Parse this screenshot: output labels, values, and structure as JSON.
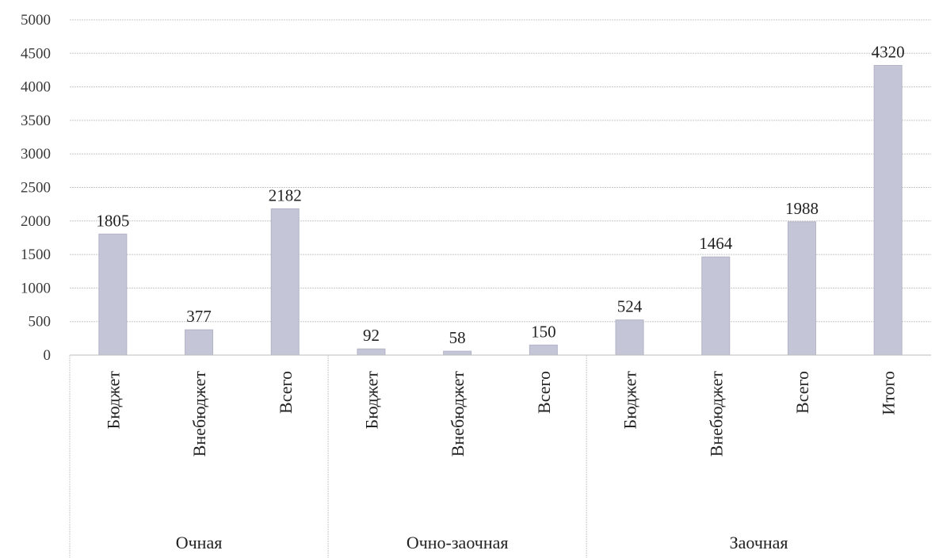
{
  "chart_data": {
    "type": "bar",
    "title": "",
    "xlabel": "",
    "ylabel": "",
    "ylim": [
      0,
      5000
    ],
    "yticks": [
      0,
      500,
      1000,
      1500,
      2000,
      2500,
      3000,
      3500,
      4000,
      4500,
      5000
    ],
    "grid": true,
    "legend": "none",
    "bar_color": "#c4c6d8",
    "groups": [
      {
        "name": "Очная",
        "categories": [
          "Бюджет",
          "Внебюджет",
          "Всего"
        ],
        "values": [
          1805,
          377,
          2182
        ]
      },
      {
        "name": "Очно-заочная",
        "categories": [
          "Бюджет",
          "Внебюджет",
          "Всего"
        ],
        "values": [
          92,
          58,
          150
        ]
      },
      {
        "name": "Заочная",
        "categories": [
          "Бюджет",
          "Внебюджет",
          "Всего",
          "Итого"
        ],
        "values": [
          524,
          1464,
          1988,
          4320
        ]
      }
    ]
  }
}
